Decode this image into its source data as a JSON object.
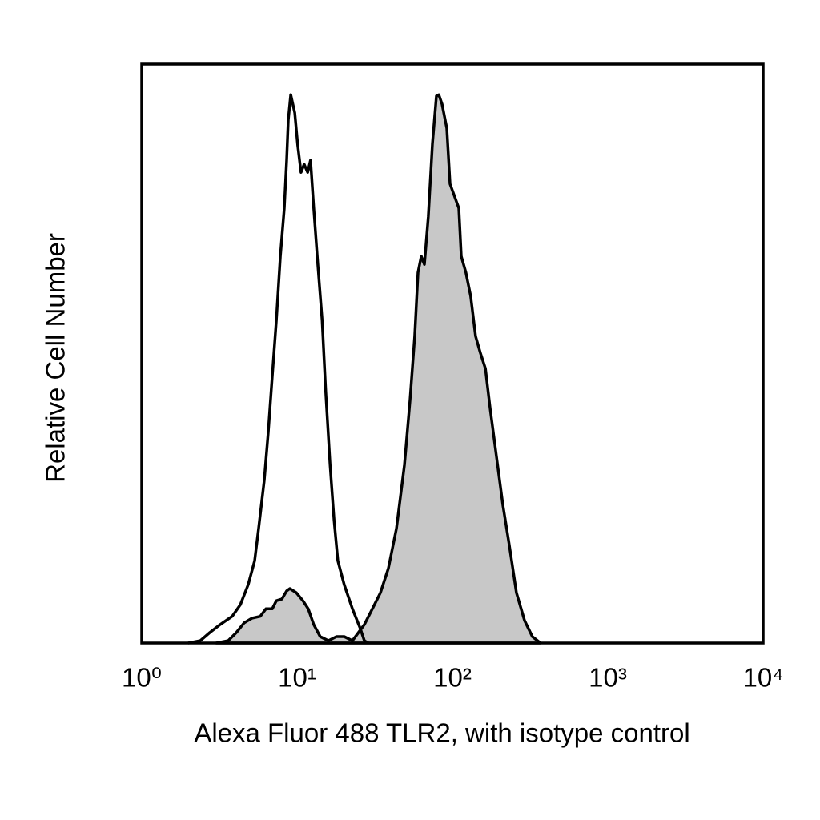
{
  "chart_data": {
    "type": "histogram",
    "xlabel": "Alexa Fluor 488 TLR2, with isotype control",
    "ylabel": "Relative Cell Number",
    "xscale": "log",
    "xlim": [
      1,
      10000
    ],
    "xticks": [
      {
        "value": 1,
        "label": "10⁰"
      },
      {
        "value": 10,
        "label": "10¹"
      },
      {
        "value": 100,
        "label": "10²"
      },
      {
        "value": 1000,
        "label": "10³"
      },
      {
        "value": 10000,
        "label": "10⁴"
      }
    ],
    "ylim": [
      0,
      100
    ],
    "series": [
      {
        "color": "#c8c8c8",
        "line_color": "#000000",
        "filled": true,
        "x": [
          3.02,
          3.6,
          4.06,
          4.57,
          5.14,
          5.79,
          6.3,
          6.92,
          7.35,
          7.98,
          8.57,
          8.99,
          9.88,
          10.9,
          11.8,
          12.8,
          14.1,
          15.9,
          17.9,
          20.1,
          22.7,
          27.1,
          30.5,
          34.4,
          38.7,
          43.6,
          49.1,
          53.3,
          57.2,
          60.0,
          63.0,
          66.0,
          70.0,
          74.3,
          78.9,
          81.7,
          85.7,
          92.0,
          96.5,
          103,
          110,
          114,
          122,
          131,
          141,
          151,
          163,
          175,
          192,
          211,
          232,
          258,
          291,
          327,
          369
        ],
        "values": [
          0,
          0.4,
          1.8,
          3.5,
          4.3,
          4.6,
          5.9,
          5.9,
          7.3,
          7.6,
          9.0,
          9.4,
          8.7,
          7.3,
          5.9,
          3.2,
          1.1,
          0.4,
          1.1,
          1.1,
          0.4,
          3.2,
          5.9,
          8.7,
          12.9,
          19.8,
          30.8,
          41.9,
          53.0,
          64.0,
          66.8,
          65.4,
          73.7,
          86.2,
          94.5,
          94.7,
          93.1,
          88.9,
          79.3,
          77.2,
          75.1,
          66.8,
          64.0,
          59.9,
          53.0,
          50.2,
          47.4,
          40.5,
          32.2,
          23.9,
          17.0,
          8.7,
          3.9,
          1.1,
          0
        ]
      },
      {
        "color": "#000000",
        "line_color": "#000000",
        "filled": false,
        "x": [
          1.99,
          2.38,
          2.74,
          3.2,
          3.82,
          4.31,
          4.85,
          5.33,
          5.66,
          6.15,
          6.52,
          6.92,
          7.35,
          7.8,
          8.27,
          8.57,
          8.78,
          9.1,
          9.66,
          10.1,
          10.6,
          11.1,
          11.7,
          12.2,
          12.8,
          13.6,
          14.5,
          15.3,
          16.3,
          17.3,
          18.3,
          20.1,
          22.7,
          25.5,
          27.1,
          28.8
        ],
        "values": [
          0,
          0.4,
          1.8,
          3.2,
          4.6,
          6.6,
          10.1,
          14.2,
          19.8,
          28.1,
          36.4,
          46.1,
          55.7,
          66.8,
          75.1,
          83.4,
          90.3,
          94.7,
          91.6,
          86.0,
          81.3,
          82.7,
          81.3,
          83.4,
          75.1,
          65.4,
          55.7,
          43.3,
          30.8,
          21.2,
          14.2,
          10.1,
          5.9,
          2.5,
          0.4,
          0
        ]
      }
    ]
  }
}
